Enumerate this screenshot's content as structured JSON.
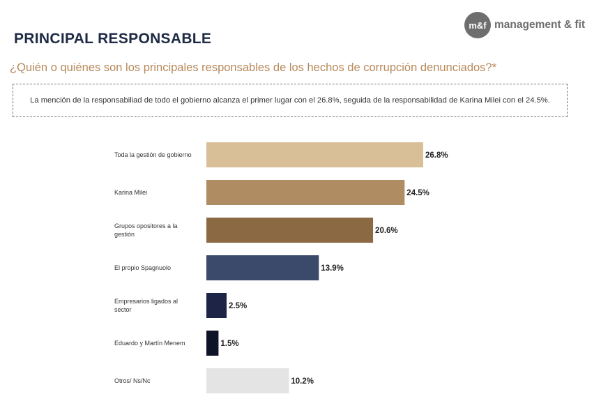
{
  "header": {
    "title": "PRINCIPAL RESPONSABLE",
    "question": "¿Quién o quiénes son los principales responsables de los hechos de corrupción denunciados?*",
    "note": "La mención de la responsabiliad de todo el gobierno alcanza el primer lugar con el 26.8%, seguida de la responsabilidad de Karina Milei con el 24.5%."
  },
  "logo": {
    "mark": "m&f",
    "text": "management & fit"
  },
  "chart_data": {
    "type": "bar",
    "orientation": "horizontal",
    "categories": [
      [
        "Toda la gestión de gobierno"
      ],
      [
        "Karina Milei"
      ],
      [
        "Grupos opositores a la",
        "gestión"
      ],
      [
        "El propio Spagnuolo"
      ],
      [
        "Empresarios ligados al",
        "sector"
      ],
      [
        "Eduardo y Martín Menem"
      ],
      [
        "Otros/ Ns/Nc"
      ]
    ],
    "values": [
      26.8,
      24.5,
      20.6,
      13.9,
      2.5,
      1.5,
      10.2
    ],
    "value_labels": [
      "26.8%",
      "24.5%",
      "20.6%",
      "13.9%",
      "2.5%",
      "1.5%",
      "10.2%"
    ],
    "colors": [
      "#d9bf98",
      "#b08c62",
      "#8b6a43",
      "#3b4a6b",
      "#1d2445",
      "#0e1326",
      "#e4e4e4"
    ],
    "xlim": [
      0,
      27
    ]
  }
}
